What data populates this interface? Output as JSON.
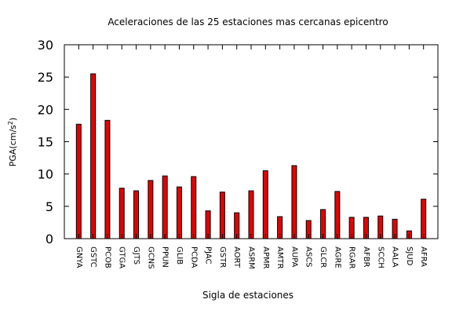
{
  "chart_data": {
    "type": "bar",
    "title": "Aceleraciones de las 25 estaciones mas cercanas epicentro",
    "xlabel": "Sigla de estaciones",
    "ylabel_base": "PGA(cm/s",
    "ylabel_sup": "2",
    "ylabel_end": ")",
    "ylim": [
      0,
      30
    ],
    "yticks": [
      0,
      5,
      10,
      15,
      20,
      25,
      30
    ],
    "grid": false,
    "legend": "none",
    "bar_color": "#e60000",
    "categories": [
      "GNYA",
      "GSTC",
      "PCOB",
      "GTGA",
      "GJTS",
      "GCNS",
      "PPUN",
      "GLIB",
      "PCDA",
      "PJAC",
      "GSTR",
      "AORT",
      "ASRM",
      "APMR",
      "AMTR",
      "AUPA",
      "ASCS",
      "GLCR",
      "AGRE",
      "RGAR",
      "AFBR",
      "SCCH",
      "AALA",
      "SJUD",
      "AFRA"
    ],
    "values": [
      17.7,
      25.5,
      18.3,
      7.8,
      7.4,
      9.0,
      9.7,
      8.0,
      9.6,
      4.3,
      7.2,
      4.0,
      7.4,
      10.5,
      3.4,
      11.3,
      2.8,
      4.5,
      7.3,
      3.3,
      3.3,
      3.5,
      3.0,
      1.2,
      6.1
    ]
  }
}
